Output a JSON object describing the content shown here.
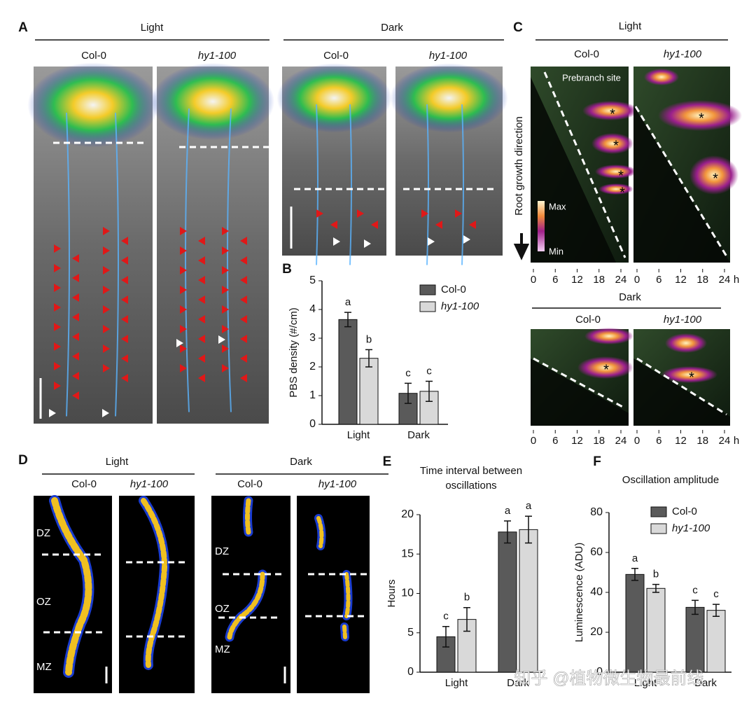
{
  "figure": {
    "panel_a": {
      "label": "A",
      "light": "Light",
      "dark": "Dark",
      "light_col": "Col-0",
      "light_hy": "hy1-100",
      "dark_col": "Col-0",
      "dark_hy": "hy1-100"
    },
    "panel_b": {
      "label": "B"
    },
    "panel_c": {
      "label": "C",
      "light": "Light",
      "col": "Col-0",
      "hy": "hy1-100",
      "prebranch": "Prebranch site",
      "max": "Max",
      "min": "Min",
      "direction": "Root growth direction",
      "dark": "Dark",
      "dark_col": "Col-0",
      "dark_hy": "hy1-100",
      "xticks": [
        0,
        6,
        12,
        18,
        24
      ],
      "unit": "h",
      "star": "*"
    },
    "panel_d": {
      "label": "D",
      "light": "Light",
      "dark": "Dark",
      "light_col": "Col-0",
      "light_hy": "hy1-100",
      "dark_col": "Col-0",
      "dark_hy": "hy1-100",
      "zones": [
        "DZ",
        "OZ",
        "MZ"
      ]
    },
    "panel_e": {
      "label": "E"
    },
    "panel_f": {
      "label": "F"
    },
    "watermark": "知乎 @植物微生物最前线"
  },
  "chart_data": [
    {
      "type": "bar",
      "ylabel": "PBS density (#/cm)",
      "categories": [
        "Light",
        "Dark"
      ],
      "series": [
        {
          "name": "Col-0",
          "color": "#5a5a5a",
          "values": [
            3.65,
            1.08
          ],
          "errors": [
            0.25,
            0.35
          ],
          "letters": [
            "a",
            "c"
          ]
        },
        {
          "name": "hy1-100",
          "color": "#d9d9d9",
          "values": [
            2.3,
            1.15
          ],
          "errors": [
            0.3,
            0.35
          ],
          "letters": [
            "b",
            "c"
          ]
        }
      ],
      "ylim": [
        0,
        5
      ],
      "yticks": [
        0,
        1,
        2,
        3,
        4,
        5
      ],
      "legend": "upper right"
    },
    {
      "type": "bar",
      "title": "Time interval between oscillations",
      "ylabel": "Hours",
      "categories": [
        "Light",
        "Dark"
      ],
      "series": [
        {
          "color": "#5a5a5a",
          "values": [
            4.5,
            17.8
          ],
          "errors": [
            1.3,
            1.4
          ],
          "letters": [
            "c",
            "a"
          ]
        },
        {
          "color": "#d9d9d9",
          "values": [
            6.7,
            18.1
          ],
          "errors": [
            1.5,
            1.7
          ],
          "letters": [
            "b",
            "a"
          ]
        }
      ],
      "ylim": [
        0,
        20
      ],
      "yticks": [
        0,
        5,
        10,
        15,
        20
      ]
    },
    {
      "type": "bar",
      "title": "Oscillation amplitude",
      "ylabel": "Luminescence (ADU)",
      "categories": [
        "Light",
        "Dark"
      ],
      "series": [
        {
          "name": "Col-0",
          "color": "#5a5a5a",
          "values": [
            49,
            32.5
          ],
          "errors": [
            3,
            3.5
          ],
          "letters": [
            "a",
            "c"
          ]
        },
        {
          "name": "hy1-100",
          "color": "#d9d9d9",
          "values": [
            42,
            31
          ],
          "errors": [
            2,
            3
          ],
          "letters": [
            "b",
            "c"
          ]
        }
      ],
      "ylim": [
        0,
        80
      ],
      "yticks": [
        0,
        20,
        40,
        60,
        80
      ],
      "legend": "upper right"
    }
  ]
}
